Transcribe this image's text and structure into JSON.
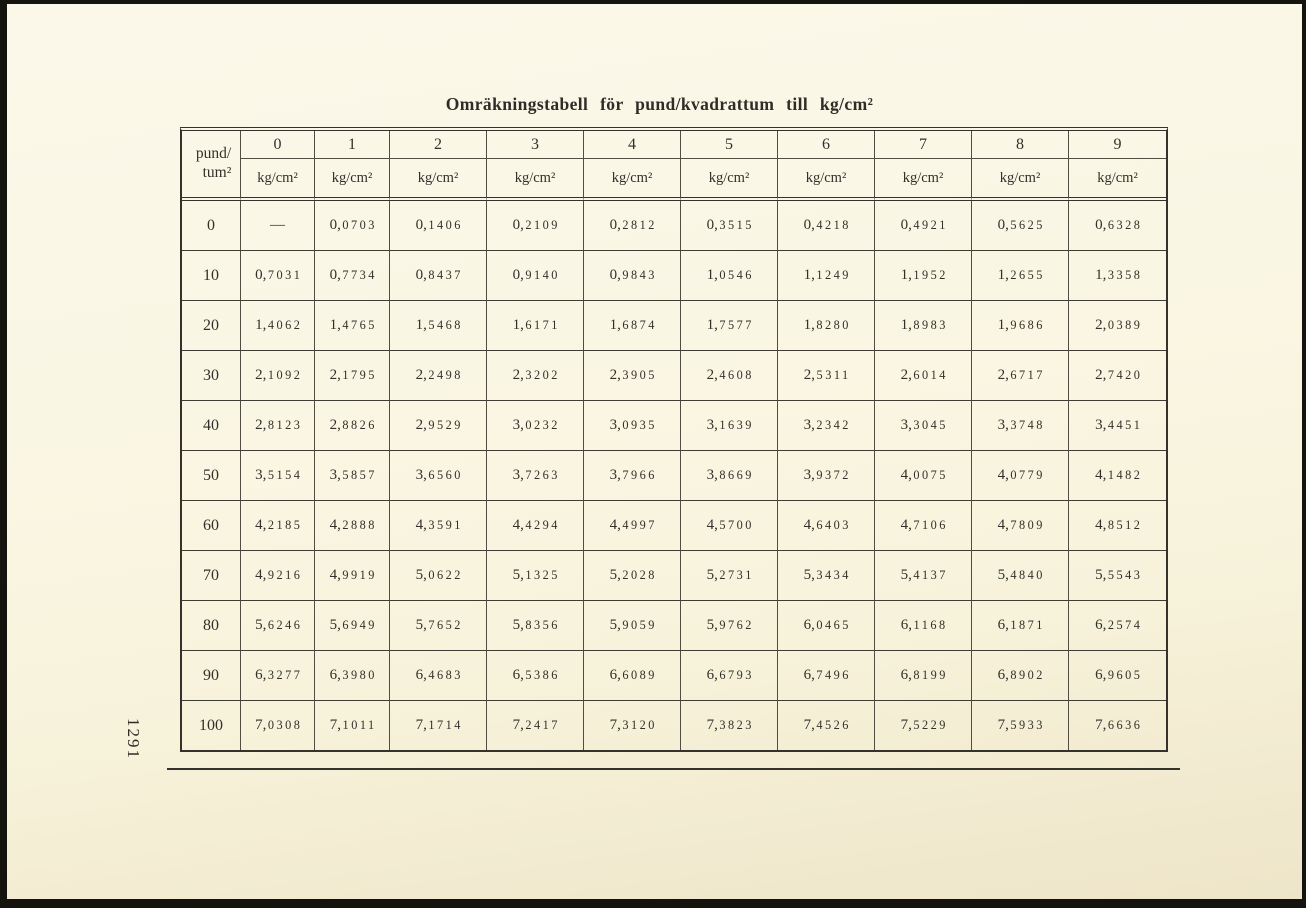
{
  "page": {
    "title": "Omräkningstabell för pund/kvadrattum till kg/cm²",
    "page_number": "1291"
  },
  "table": {
    "corner_label_line1": "pund/",
    "corner_label_line2": "tum²",
    "column_headers": [
      "0",
      "1",
      "2",
      "3",
      "4",
      "5",
      "6",
      "7",
      "8",
      "9"
    ],
    "unit_label": "kg/cm²",
    "row_labels": [
      "0",
      "10",
      "20",
      "30",
      "40",
      "50",
      "60",
      "70",
      "80",
      "90",
      "100"
    ],
    "rows": [
      [
        "—",
        "0,0703",
        "0,1406",
        "0,2109",
        "0,2812",
        "0,3515",
        "0,4218",
        "0,4921",
        "0,5625",
        "0,6328"
      ],
      [
        "0,7031",
        "0,7734",
        "0,8437",
        "0,9140",
        "0,9843",
        "1,0546",
        "1,1249",
        "1,1952",
        "1,2655",
        "1,3358"
      ],
      [
        "1,4062",
        "1,4765",
        "1,5468",
        "1,6171",
        "1,6874",
        "1,7577",
        "1,8280",
        "1,8983",
        "1,9686",
        "2,0389"
      ],
      [
        "2,1092",
        "2,1795",
        "2,2498",
        "2,3202",
        "2,3905",
        "2,4608",
        "2,5311",
        "2,6014",
        "2,6717",
        "2,7420"
      ],
      [
        "2,8123",
        "2,8826",
        "2,9529",
        "3,0232",
        "3,0935",
        "3,1639",
        "3,2342",
        "3,3045",
        "3,3748",
        "3,4451"
      ],
      [
        "3,5154",
        "3,5857",
        "3,6560",
        "3,7263",
        "3,7966",
        "3,8669",
        "3,9372",
        "4,0075",
        "4,0779",
        "4,1482"
      ],
      [
        "4,2185",
        "4,2888",
        "4,3591",
        "4,4294",
        "4,4997",
        "4,5700",
        "4,6403",
        "4,7106",
        "4,7809",
        "4,8512"
      ],
      [
        "4,9216",
        "4,9919",
        "5,0622",
        "5,1325",
        "5,2028",
        "5,2731",
        "5,3434",
        "5,4137",
        "5,4840",
        "5,5543"
      ],
      [
        "5,6246",
        "5,6949",
        "5,7652",
        "5,8356",
        "5,9059",
        "5,9762",
        "6,0465",
        "6,1168",
        "6,1871",
        "6,2574"
      ],
      [
        "6,3277",
        "6,3980",
        "6,4683",
        "6,5386",
        "6,6089",
        "6,6793",
        "6,7496",
        "6,8199",
        "6,8902",
        "6,9605"
      ],
      [
        "7,0308",
        "7,1011",
        "7,1714",
        "7,2417",
        "7,3120",
        "7,3823",
        "7,4526",
        "7,5229",
        "7,5933",
        "7,6636"
      ]
    ]
  },
  "colors": {
    "paper": "#f9f5e1",
    "ink": "#2e2c26",
    "rule": "#35322b"
  }
}
